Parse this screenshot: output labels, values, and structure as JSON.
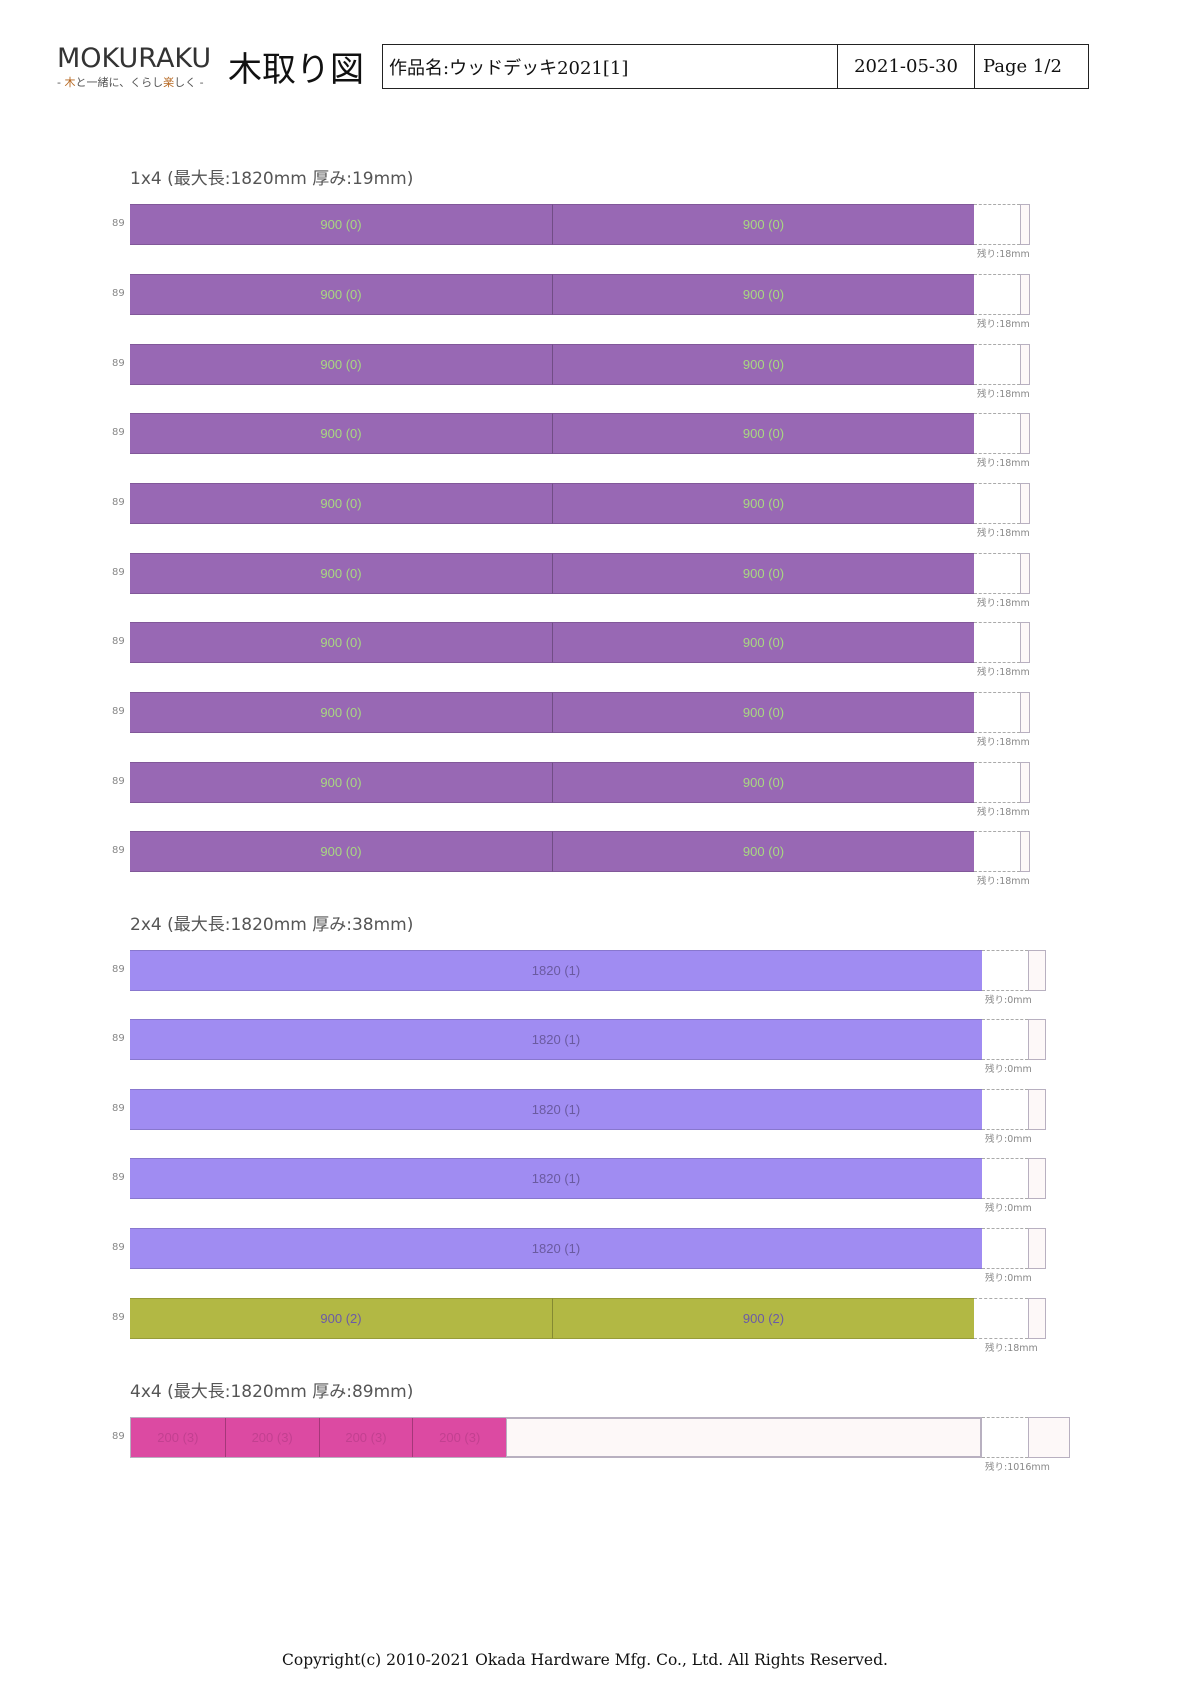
{
  "header": {
    "logo_text": "MOKURAKU",
    "logo_tagline_prefix": "- ",
    "logo_tagline_accent1": "木",
    "logo_tagline_mid": "と一緒に、くらし",
    "logo_tagline_accent2": "楽",
    "logo_tagline_suffix": "しく -",
    "title": "木取り図",
    "project_name": "作品名:ウッドデッキ2021[1]",
    "date": "2021-05-30",
    "page": "Page 1/2"
  },
  "colors": {
    "purple": "#9868b4",
    "purple_text": "#a8d880",
    "lavender": "#a08cf2",
    "lavender_text": "#6a5aa0",
    "olive": "#b2b844",
    "olive_text": "#6b5aa8",
    "pink": "#dc4aa2",
    "pink_text": "#c24090"
  },
  "sections": [
    {
      "title": "1x4 (最大長:1820mm  厚み:19mm)",
      "rows": [
        {
          "width_label": "89",
          "pieces": [
            "900 (0)",
            "900 (0)"
          ],
          "remaining": "残り:18mm"
        },
        {
          "width_label": "89",
          "pieces": [
            "900 (0)",
            "900 (0)"
          ],
          "remaining": "残り:18mm"
        },
        {
          "width_label": "89",
          "pieces": [
            "900 (0)",
            "900 (0)"
          ],
          "remaining": "残り:18mm"
        },
        {
          "width_label": "89",
          "pieces": [
            "900 (0)",
            "900 (0)"
          ],
          "remaining": "残り:18mm"
        },
        {
          "width_label": "89",
          "pieces": [
            "900 (0)",
            "900 (0)"
          ],
          "remaining": "残り:18mm"
        },
        {
          "width_label": "89",
          "pieces": [
            "900 (0)",
            "900 (0)"
          ],
          "remaining": "残り:18mm"
        },
        {
          "width_label": "89",
          "pieces": [
            "900 (0)",
            "900 (0)"
          ],
          "remaining": "残り:18mm"
        },
        {
          "width_label": "89",
          "pieces": [
            "900 (0)",
            "900 (0)"
          ],
          "remaining": "残り:18mm"
        },
        {
          "width_label": "89",
          "pieces": [
            "900 (0)",
            "900 (0)"
          ],
          "remaining": "残り:18mm"
        },
        {
          "width_label": "89",
          "pieces": [
            "900 (0)",
            "900 (0)"
          ],
          "remaining": "残り:18mm"
        }
      ]
    },
    {
      "title": "2x4 (最大長:1820mm  厚み:38mm)",
      "rows": [
        {
          "width_label": "89",
          "pieces": [
            "1820 (1)"
          ],
          "remaining": "残り:0mm"
        },
        {
          "width_label": "89",
          "pieces": [
            "1820 (1)"
          ],
          "remaining": "残り:0mm"
        },
        {
          "width_label": "89",
          "pieces": [
            "1820 (1)"
          ],
          "remaining": "残り:0mm"
        },
        {
          "width_label": "89",
          "pieces": [
            "1820 (1)"
          ],
          "remaining": "残り:0mm"
        },
        {
          "width_label": "89",
          "pieces": [
            "1820 (1)"
          ],
          "remaining": "残り:0mm"
        },
        {
          "width_label": "89",
          "pieces": [
            "900 (2)",
            "900 (2)"
          ],
          "remaining": "残り:18mm"
        }
      ]
    },
    {
      "title": "4x4 (最大長:1820mm  厚み:89mm)",
      "rows": [
        {
          "width_label": "89",
          "pieces": [
            "200 (3)",
            "200 (3)",
            "200 (3)",
            "200 (3)"
          ],
          "remaining": "残り:1016mm"
        }
      ]
    }
  ],
  "footer": "Copyright(c) 2010-2021 Okada Hardware Mfg. Co., Ltd.    All Rights Reserved."
}
